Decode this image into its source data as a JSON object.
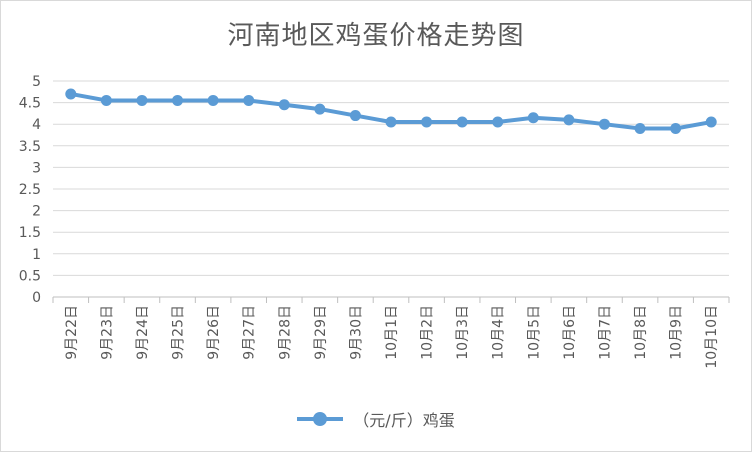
{
  "chart_data": {
    "type": "line",
    "title": "河南地区鸡蛋价格走势图",
    "categories": [
      "9月22日",
      "9月23日",
      "9月24日",
      "9月25日",
      "9月26日",
      "9月27日",
      "9月28日",
      "9月29日",
      "9月30日",
      "10月1日",
      "10月2日",
      "10月3日",
      "10月4日",
      "10月5日",
      "10月6日",
      "10月7日",
      "10月8日",
      "10月9日",
      "10月10日"
    ],
    "series": [
      {
        "name": "（元/斤）鸡蛋",
        "values": [
          4.7,
          4.55,
          4.55,
          4.55,
          4.55,
          4.55,
          4.45,
          4.35,
          4.2,
          4.05,
          4.05,
          4.05,
          4.05,
          4.15,
          4.1,
          4.0,
          3.9,
          3.9,
          4.05
        ],
        "color": "#5b9bd5"
      }
    ],
    "ylim": [
      0,
      5
    ],
    "yticks": [
      "0",
      "0.5",
      "1",
      "1.5",
      "2",
      "2.5",
      "3",
      "3.5",
      "4",
      "4.5",
      "5"
    ],
    "grid": true,
    "legend_position": "bottom"
  }
}
